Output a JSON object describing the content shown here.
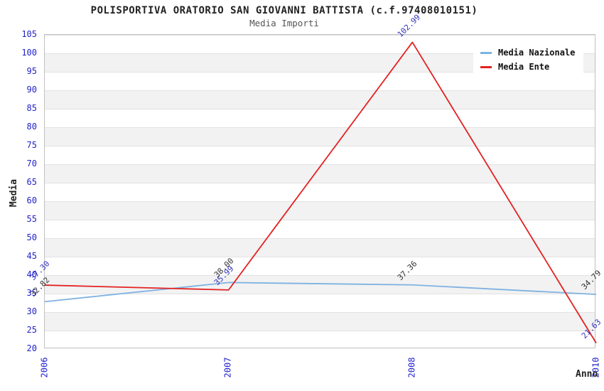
{
  "header": {
    "title": "POLISPORTIVA ORATORIO SAN GIOVANNI BATTISTA (c.f.97408010151)",
    "subtitle": "Media Importi"
  },
  "colors": {
    "tick_label": "#2222cc",
    "title_text": "#222222",
    "subtitle_text": "#555555",
    "axis_title_text": "#222222",
    "plot_border": "#c0c0c0",
    "band_fill": "#f2f2f2",
    "grid_line": "#e2e2e2",
    "legend_background": "#ffffff",
    "media_nazionale_line": "#7fb2e2",
    "media_ente_line": "#e32222",
    "media_nazionale_point_label": "#333333",
    "media_ente_point_label": "#3333bb"
  },
  "chart_data": {
    "type": "line",
    "title": "POLISPORTIVA ORATORIO SAN GIOVANNI BATTISTA (c.f.97408010151)",
    "subtitle": "Media Importi",
    "xlabel": "Anno",
    "ylabel": "Media",
    "categories": [
      "2006",
      "2007",
      "2008",
      "2010"
    ],
    "ylim": [
      20,
      105
    ],
    "ytick_step": 5,
    "yticks": [
      105,
      100,
      95,
      90,
      85,
      80,
      75,
      70,
      65,
      60,
      55,
      50,
      45,
      40,
      35,
      30,
      25,
      20
    ],
    "grid": "horizontal-bands-and-lines",
    "legend_position": "top-right",
    "series": [
      {
        "name": "Media Nazionale",
        "color": "#7fb2e2",
        "label_color": "#333333",
        "values": [
          32.82,
          38.0,
          37.36,
          34.79
        ],
        "point_labels": [
          "32.82",
          "38.00",
          "37.36",
          "34.79"
        ]
      },
      {
        "name": "Media Ente",
        "color": "#e32222",
        "label_color": "#3333bb",
        "values": [
          37.3,
          35.99,
          102.99,
          21.63
        ],
        "point_labels": [
          "37.30",
          "35.99",
          "102.99",
          "21.63"
        ]
      }
    ]
  }
}
